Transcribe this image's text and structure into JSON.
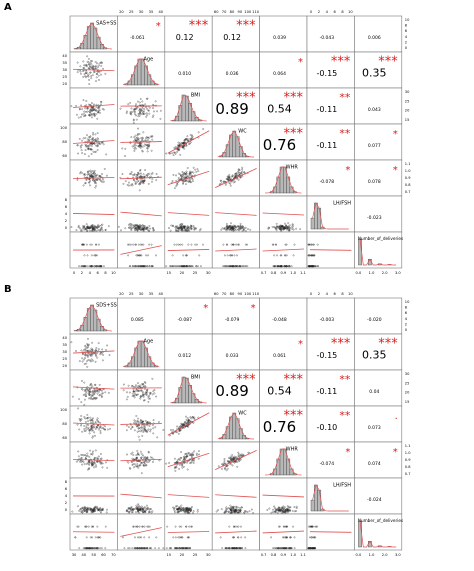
{
  "chart_data": [
    {
      "type": "pairs-matrix",
      "panel_label": "A",
      "variables": [
        "SAS+SS",
        "Age",
        "BMI",
        "WC",
        "WHR",
        "LH/FSH",
        "Number_of_deliveries"
      ],
      "correlations": [
        {
          "row": 0,
          "col": 1,
          "value": "-0.061",
          "stars": "*"
        },
        {
          "row": 0,
          "col": 2,
          "value": "0.12",
          "stars": "***"
        },
        {
          "row": 0,
          "col": 3,
          "value": "0.12",
          "stars": "***"
        },
        {
          "row": 0,
          "col": 4,
          "value": "0.039",
          "stars": ""
        },
        {
          "row": 0,
          "col": 5,
          "value": "-0.043",
          "stars": ""
        },
        {
          "row": 0,
          "col": 6,
          "value": "0.006",
          "stars": ""
        },
        {
          "row": 1,
          "col": 2,
          "value": "0.010",
          "stars": ""
        },
        {
          "row": 1,
          "col": 3,
          "value": "0.036",
          "stars": ""
        },
        {
          "row": 1,
          "col": 4,
          "value": "0.064",
          "stars": "*"
        },
        {
          "row": 1,
          "col": 5,
          "value": "-0.15",
          "stars": "***"
        },
        {
          "row": 1,
          "col": 6,
          "value": "0.35",
          "stars": "***"
        },
        {
          "row": 2,
          "col": 3,
          "value": "0.89",
          "stars": "***"
        },
        {
          "row": 2,
          "col": 4,
          "value": "0.54",
          "stars": "***"
        },
        {
          "row": 2,
          "col": 5,
          "value": "-0.11",
          "stars": "**"
        },
        {
          "row": 2,
          "col": 6,
          "value": "0.043",
          "stars": ""
        },
        {
          "row": 3,
          "col": 4,
          "value": "0.76",
          "stars": "***"
        },
        {
          "row": 3,
          "col": 5,
          "value": "-0.11",
          "stars": "**"
        },
        {
          "row": 3,
          "col": 6,
          "value": "0.077",
          "stars": "*"
        },
        {
          "row": 4,
          "col": 5,
          "value": "-0.078",
          "stars": "*"
        },
        {
          "row": 4,
          "col": 6,
          "value": "0.078",
          "stars": "*"
        },
        {
          "row": 5,
          "col": 6,
          "value": "-0.023",
          "stars": ""
        }
      ],
      "top_axis_ticks": [
        {
          "col": 1,
          "ticks": [
            "20",
            "25",
            "30",
            "35",
            "40"
          ]
        },
        {
          "col": 3,
          "ticks": [
            "60",
            "70",
            "80",
            "90",
            "100",
            "110"
          ]
        },
        {
          "col": 5,
          "ticks": [
            "0",
            "2",
            "4",
            "6",
            "8",
            "10"
          ]
        }
      ],
      "right_axis_ticks": [
        {
          "row": 0,
          "ticks": [
            "0",
            "2",
            "4",
            "6",
            "8",
            "10"
          ]
        },
        {
          "row": 2,
          "ticks": [
            "15",
            "20",
            "25",
            "30"
          ]
        },
        {
          "row": 4,
          "ticks": [
            "0.7",
            "0.8",
            "0.9",
            "1.0",
            "1.1"
          ]
        }
      ],
      "left_axis_ticks": [
        {
          "row": 1,
          "ticks": [
            "20",
            "25",
            "30",
            "35",
            "40"
          ]
        },
        {
          "row": 3,
          "ticks": [
            "60",
            "80",
            "100"
          ]
        },
        {
          "row": 5,
          "ticks": [
            "0",
            "2",
            "4",
            "6",
            "8"
          ]
        }
      ],
      "bottom_axis_ticks": [
        {
          "col": 0,
          "ticks": [
            "0",
            "2",
            "4",
            "6",
            "8",
            "10"
          ]
        },
        {
          "col": 2,
          "ticks": [
            "15",
            "20",
            "25",
            "30"
          ]
        },
        {
          "col": 4,
          "ticks": [
            "0.7",
            "0.8",
            "0.9",
            "1.0",
            "1.1"
          ]
        },
        {
          "col": 6,
          "ticks": [
            "0.0",
            "1.0",
            "2.0",
            "3.0"
          ]
        }
      ]
    },
    {
      "type": "pairs-matrix",
      "panel_label": "B",
      "variables": [
        "SDS+SS",
        "Age",
        "BMI",
        "WC",
        "WHR",
        "LH/FSH",
        "Number_of_deliveries"
      ],
      "correlations": [
        {
          "row": 0,
          "col": 1,
          "value": "0.085",
          "stars": ""
        },
        {
          "row": 0,
          "col": 2,
          "value": "-0.087",
          "stars": "*"
        },
        {
          "row": 0,
          "col": 3,
          "value": "-0.079",
          "stars": "*"
        },
        {
          "row": 0,
          "col": 4,
          "value": "-0.048",
          "stars": ""
        },
        {
          "row": 0,
          "col": 5,
          "value": "-0.003",
          "stars": ""
        },
        {
          "row": 0,
          "col": 6,
          "value": "-0.020",
          "stars": ""
        },
        {
          "row": 1,
          "col": 2,
          "value": "0.012",
          "stars": ""
        },
        {
          "row": 1,
          "col": 3,
          "value": "0.033",
          "stars": ""
        },
        {
          "row": 1,
          "col": 4,
          "value": "0.061",
          "stars": "*"
        },
        {
          "row": 1,
          "col": 5,
          "value": "-0.15",
          "stars": "***"
        },
        {
          "row": 1,
          "col": 6,
          "value": "0.35",
          "stars": "***"
        },
        {
          "row": 2,
          "col": 3,
          "value": "0.89",
          "stars": "***"
        },
        {
          "row": 2,
          "col": 4,
          "value": "0.54",
          "stars": "***"
        },
        {
          "row": 2,
          "col": 5,
          "value": "-0.11",
          "stars": "**"
        },
        {
          "row": 2,
          "col": 6,
          "value": "0.04",
          "stars": ""
        },
        {
          "row": 3,
          "col": 4,
          "value": "0.76",
          "stars": "***"
        },
        {
          "row": 3,
          "col": 5,
          "value": "-0.10",
          "stars": "**"
        },
        {
          "row": 3,
          "col": 6,
          "value": "0.073",
          "stars": "."
        },
        {
          "row": 4,
          "col": 5,
          "value": "-0.074",
          "stars": "*"
        },
        {
          "row": 4,
          "col": 6,
          "value": "0.074",
          "stars": "*"
        },
        {
          "row": 5,
          "col": 6,
          "value": "-0.024",
          "stars": ""
        }
      ],
      "top_axis_ticks": [
        {
          "col": 1,
          "ticks": [
            "20",
            "25",
            "30",
            "35",
            "40"
          ]
        },
        {
          "col": 3,
          "ticks": [
            "60",
            "70",
            "80",
            "90",
            "100",
            "110"
          ]
        },
        {
          "col": 5,
          "ticks": [
            "0",
            "2",
            "4",
            "6",
            "8",
            "10"
          ]
        }
      ],
      "right_axis_ticks": [
        {
          "row": 0,
          "ticks": [
            "0",
            "2",
            "4",
            "6",
            "8",
            "10"
          ]
        },
        {
          "row": 2,
          "ticks": [
            "15",
            "20",
            "25",
            "30"
          ]
        },
        {
          "row": 4,
          "ticks": [
            "0.7",
            "0.8",
            "0.9",
            "1.0",
            "1.1"
          ]
        }
      ],
      "left_axis_ticks": [
        {
          "row": 1,
          "ticks": [
            "20",
            "25",
            "30",
            "35",
            "40"
          ]
        },
        {
          "row": 3,
          "ticks": [
            "60",
            "80",
            "100"
          ]
        },
        {
          "row": 5,
          "ticks": [
            "0",
            "2",
            "4",
            "6",
            "8"
          ]
        }
      ],
      "bottom_axis_ticks": [
        {
          "col": 0,
          "ticks": [
            "30",
            "40",
            "50",
            "60",
            "70"
          ]
        },
        {
          "col": 2,
          "ticks": [
            "15",
            "20",
            "25",
            "30"
          ]
        },
        {
          "col": 4,
          "ticks": [
            "0.7",
            "0.8",
            "0.9",
            "1.0",
            "1.1"
          ]
        },
        {
          "col": 6,
          "ticks": [
            "0.0",
            "1.0",
            "2.0",
            "3.0"
          ]
        }
      ]
    }
  ],
  "colors": {
    "stars": "#d62020",
    "fit_line": "#e05050",
    "histogram_fill": "#b8b8b8",
    "panel_border": "#777777"
  }
}
